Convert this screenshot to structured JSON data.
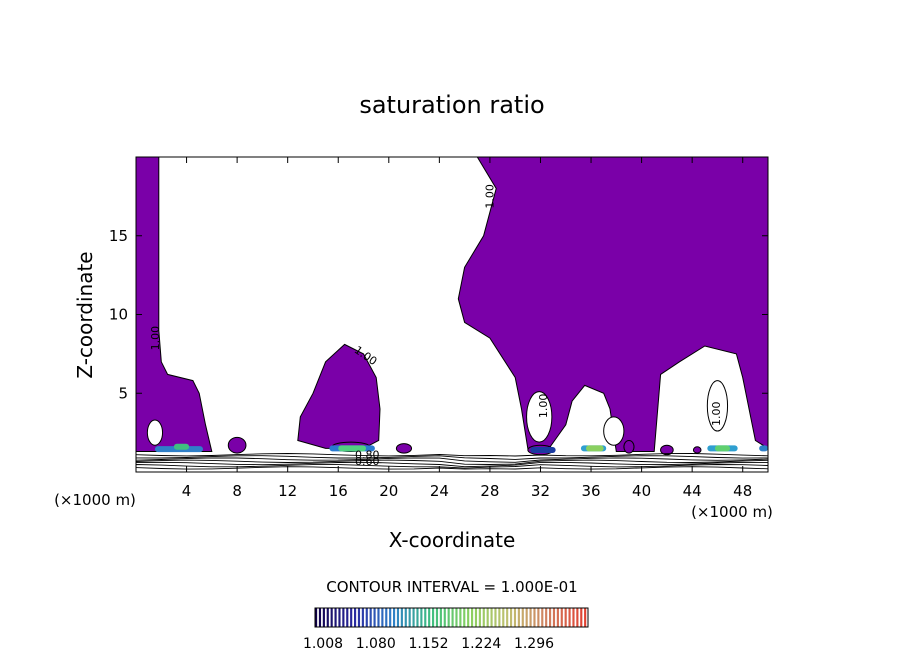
{
  "chart_data": {
    "type": "heatmap",
    "title": "saturation ratio",
    "xlabel": "X-coordinate",
    "ylabel": "Z-coordinate",
    "x_unit_left": "(×1000 m)",
    "x_unit_right": "(×1000 m)",
    "xlim": [
      0,
      50
    ],
    "ylim": [
      0,
      20
    ],
    "x_ticks": [
      4,
      8,
      12,
      16,
      20,
      24,
      28,
      32,
      36,
      40,
      44,
      48
    ],
    "y_ticks": [
      5,
      10,
      15
    ],
    "contour_interval_label": "CONTOUR INTERVAL = 1.000E-01",
    "colorbar_ticks": [
      "1.008",
      "1.080",
      "1.152",
      "1.224",
      "1.296"
    ],
    "contour_labels": [
      "1.00",
      "1.00",
      "1.00",
      "1.00",
      "1.00",
      "0.80",
      "0.60"
    ],
    "colors": {
      "fill": "#7a00a8",
      "colorbar": [
        "#10004a",
        "#2a2aa0",
        "#2f7fc8",
        "#3fbf80",
        "#8ad060",
        "#c0c070",
        "#d08060",
        "#e04030"
      ]
    },
    "regions": [
      {
        "name": "left-column",
        "points": [
          [
            0,
            20
          ],
          [
            1.8,
            20
          ],
          [
            1.8,
            9
          ],
          [
            2,
            7
          ],
          [
            2.5,
            6.2
          ],
          [
            4.5,
            5.8
          ],
          [
            5,
            5
          ],
          [
            5.5,
            3
          ],
          [
            6,
            1.3
          ],
          [
            3,
            1.3
          ],
          [
            0,
            1.3
          ]
        ]
      },
      {
        "name": "center-cloud",
        "points": [
          [
            12.8,
            2
          ],
          [
            13,
            3.5
          ],
          [
            14,
            5
          ],
          [
            15,
            7
          ],
          [
            16.5,
            8.1
          ],
          [
            18,
            7.5
          ],
          [
            19,
            6
          ],
          [
            19.3,
            4
          ],
          [
            19.2,
            2
          ],
          [
            18,
            1.5
          ],
          [
            15,
            1.5
          ]
        ]
      },
      {
        "name": "right-mass",
        "points": [
          [
            27,
            20
          ],
          [
            50,
            20
          ],
          [
            50,
            1.5
          ],
          [
            49,
            2
          ],
          [
            48,
            6
          ],
          [
            47.5,
            7.5
          ],
          [
            45,
            8
          ],
          [
            43,
            7
          ],
          [
            41.5,
            6.2
          ],
          [
            41,
            1.3
          ],
          [
            38,
            1.3
          ],
          [
            37.5,
            4
          ],
          [
            37,
            5
          ],
          [
            35.5,
            5.5
          ],
          [
            34.5,
            4.5
          ],
          [
            34,
            3
          ],
          [
            32.5,
            1.3
          ],
          [
            31,
            1.5
          ],
          [
            30.5,
            4
          ],
          [
            30,
            6
          ],
          [
            28,
            8.5
          ],
          [
            26,
            9.5
          ],
          [
            25.5,
            11
          ],
          [
            26,
            13
          ],
          [
            27.5,
            15
          ],
          [
            28.5,
            18
          ]
        ]
      }
    ]
  }
}
